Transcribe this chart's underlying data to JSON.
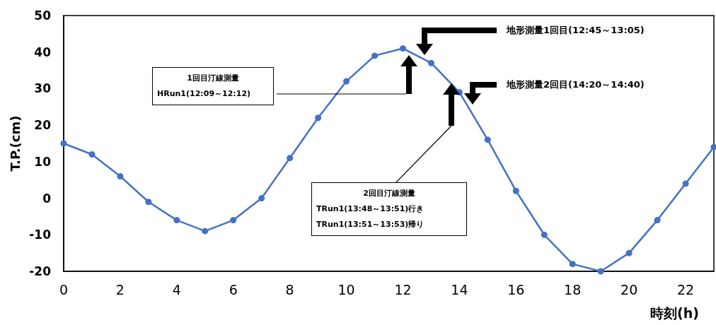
{
  "chart_data": {
    "type": "line",
    "xlabel": "時刻(h)",
    "ylabel": "T.P.(cm)",
    "x": [
      0,
      1,
      2,
      3,
      4,
      5,
      6,
      7,
      8,
      9,
      10,
      11,
      12,
      13,
      14,
      15,
      16,
      17,
      18,
      19,
      20,
      21,
      22,
      23
    ],
    "series": [
      {
        "color": "#4472c4",
        "values": [
          15,
          12,
          6,
          -1,
          -6,
          -9,
          -6,
          0,
          11,
          22,
          32,
          39,
          41,
          37,
          29,
          16,
          2,
          -10,
          -18,
          -20,
          -15,
          -6,
          4,
          14
        ]
      }
    ],
    "xlim": [
      0,
      23
    ],
    "xticks": [
      0,
      2,
      4,
      6,
      8,
      10,
      12,
      14,
      16,
      18,
      20,
      22
    ],
    "ylim": [
      -20,
      50
    ],
    "yticks": [
      -20,
      -10,
      0,
      10,
      20,
      30,
      40,
      50
    ],
    "marker": "circle",
    "line_style": "solid",
    "annotations": [
      "1回目汀線測量\nHRun1(12:09～12:12)",
      "地形測量1回目(12:45～13:05)",
      "2回目汀線測量\nTRun1(13:48～13:51)行き\nTRun1(13:51～13:53)帰り",
      "地形測量2回目(14:20～14:40)"
    ]
  }
}
